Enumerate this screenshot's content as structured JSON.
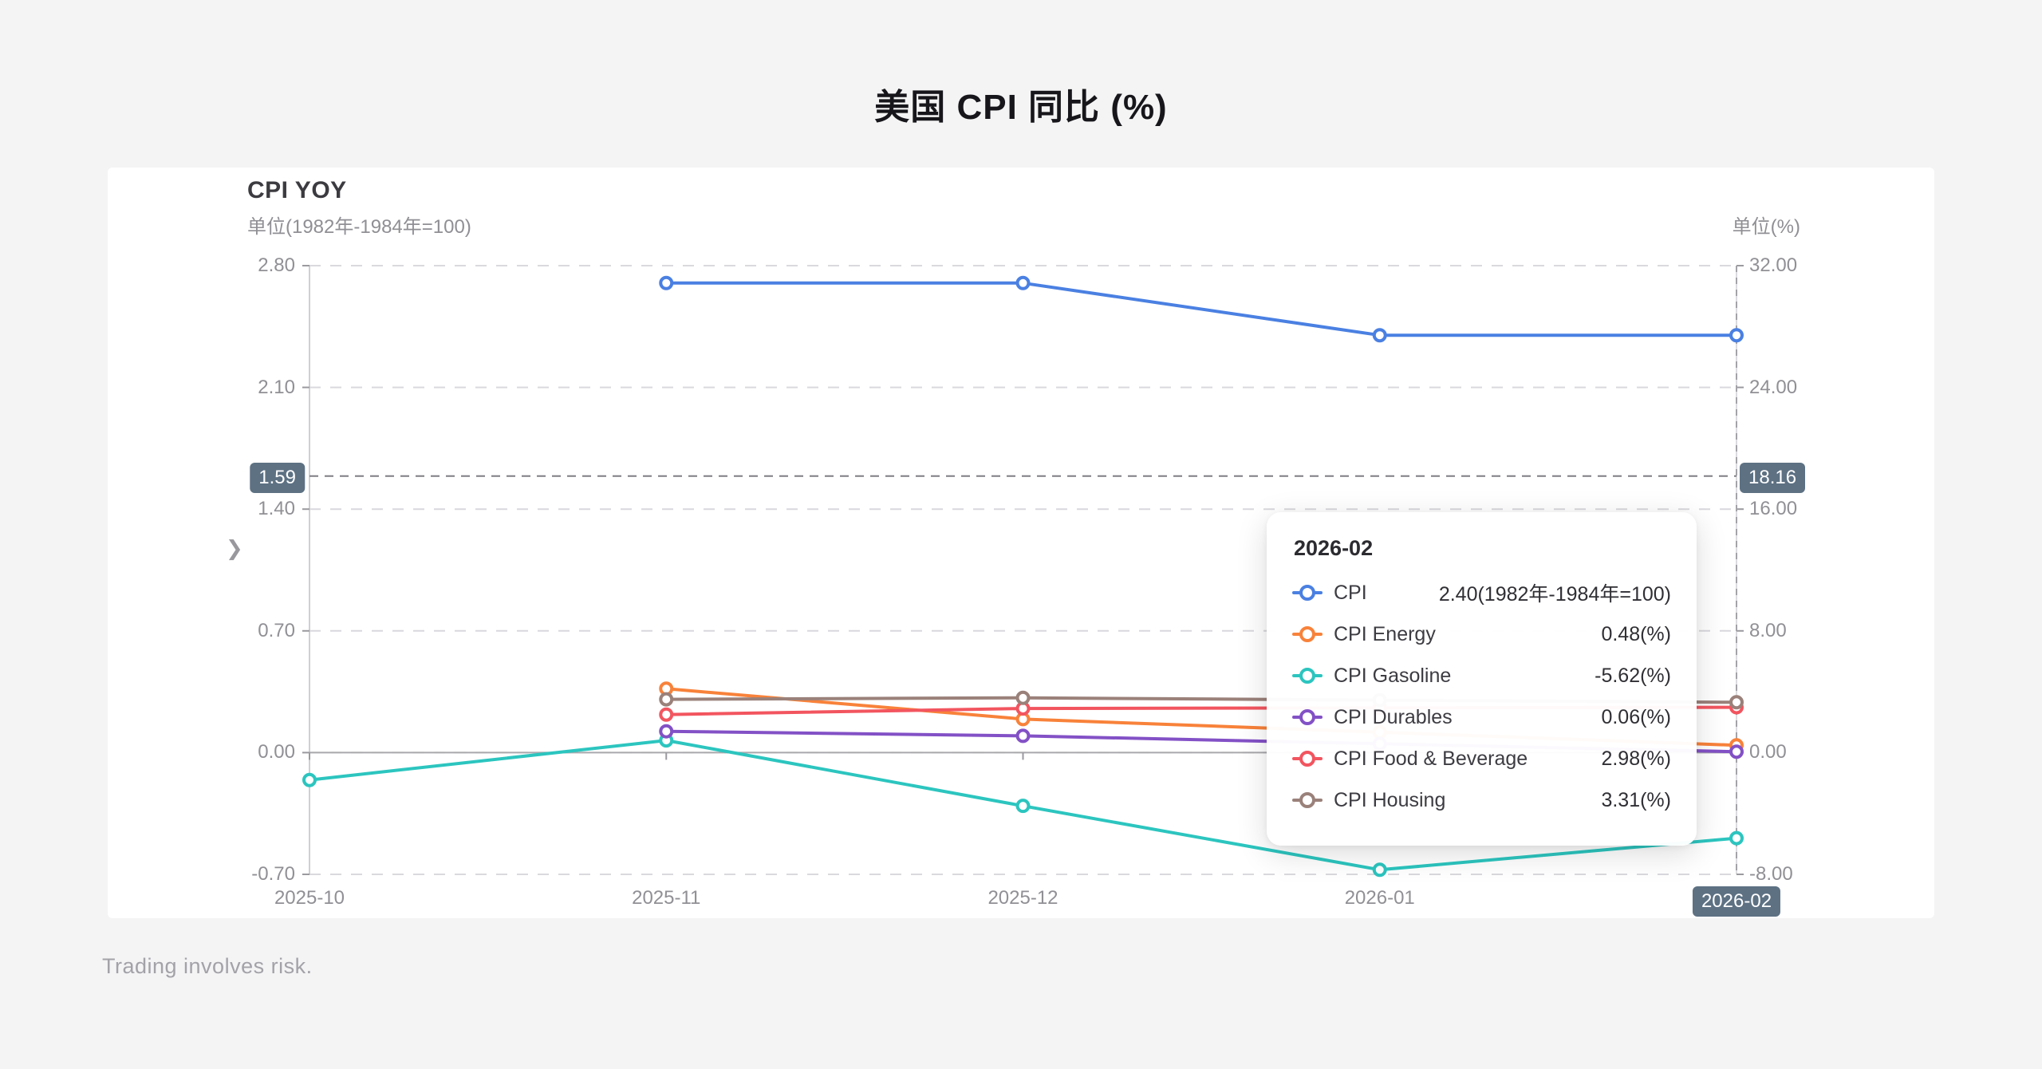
{
  "page": {
    "title": "美国 CPI 同比 (%)",
    "footer": "Trading involves risk."
  },
  "chart_data": {
    "type": "line",
    "title": "CPI YOY",
    "x": [
      "2025-10",
      "2025-11",
      "2025-12",
      "2026-01",
      "2026-02"
    ],
    "left_axis": {
      "label": "单位(1982年-1984年=100)",
      "range": [
        -0.7,
        2.8
      ],
      "ticks": [
        "2.80",
        "2.10",
        "1.40",
        "0.70",
        "0.00",
        "-0.70"
      ]
    },
    "right_axis": {
      "label": "单位(%)",
      "range": [
        -8.0,
        32.0
      ],
      "ticks": [
        "32.00",
        "24.00",
        "16.00",
        "8.00",
        "0.00",
        "-8.00"
      ]
    },
    "grid": true,
    "legend_position": "none",
    "series": [
      {
        "name": "CPI",
        "axis": "left",
        "color": "#4a80e2",
        "values": [
          null,
          2.7,
          2.7,
          2.4,
          2.4
        ]
      },
      {
        "name": "CPI Energy",
        "axis": "right",
        "color": "#f8823a",
        "values": [
          null,
          4.2,
          2.2,
          1.34,
          0.48
        ]
      },
      {
        "name": "CPI Gasoline",
        "axis": "right",
        "color": "#2cc5bf",
        "values": [
          -1.8,
          0.8,
          -3.5,
          -7.7,
          -5.62
        ]
      },
      {
        "name": "CPI Durables",
        "axis": "right",
        "color": "#8351c6",
        "values": [
          null,
          1.4,
          1.1,
          0.58,
          0.06
        ]
      },
      {
        "name": "CPI Food & Beverage",
        "axis": "right",
        "color": "#f2555f",
        "values": [
          null,
          2.5,
          2.9,
          2.94,
          2.98
        ]
      },
      {
        "name": "CPI Housing",
        "axis": "right",
        "color": "#9a817a",
        "values": [
          null,
          3.5,
          3.6,
          3.45,
          3.31
        ]
      }
    ],
    "crosshair": {
      "left_label": "1.59",
      "right_label": "18.16",
      "x_label": "2026-02",
      "y_left": 1.59,
      "y_right": 18.16,
      "x_index": 4
    }
  },
  "tooltip": {
    "header": "2026-02",
    "rows": [
      {
        "name": "CPI",
        "value": "2.40(1982年-1984年=100)",
        "color": "#4a80e2"
      },
      {
        "name": "CPI Energy",
        "value": "0.48(%)",
        "color": "#f8823a"
      },
      {
        "name": "CPI Gasoline",
        "value": "-5.62(%)",
        "color": "#2cc5bf"
      },
      {
        "name": "CPI Durables",
        "value": "0.06(%)",
        "color": "#8351c6"
      },
      {
        "name": "CPI Food & Beverage",
        "value": "2.98(%)",
        "color": "#f2555f"
      },
      {
        "name": "CPI Housing",
        "value": "3.31(%)",
        "color": "#9a817a"
      }
    ]
  }
}
